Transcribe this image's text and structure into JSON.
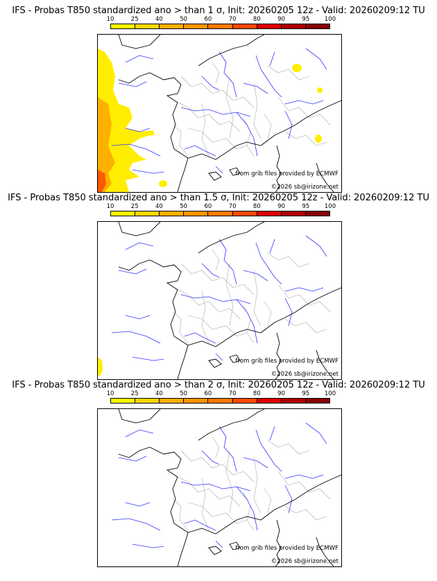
{
  "panels": [
    {
      "title": "IFS - Probas T850  standardized ano > than 1 σ, Init: 20260205 12z - Valid: 20260209:12 TU",
      "threshold_sigma": 1,
      "source_credit": "from grib files provided by ECMWF",
      "copyright": "©2026 sb@irizone.net"
    },
    {
      "title": "IFS - Probas T850  standardized ano > than 1.5 σ, Init: 20260205 12z - Valid: 20260209:12 TU",
      "threshold_sigma": 1.5,
      "source_credit": "from grib files provided by ECMWF",
      "copyright": "©2026 sb@irizone.net"
    },
    {
      "title": "IFS - Probas T850  standardized ano > than 2 σ, Init: 20260205 12z - Valid: 20260209:12 TU",
      "threshold_sigma": 2,
      "source_credit": "from grib files provided by ECMWF",
      "copyright": "©2026 sb@irizone.net"
    }
  ],
  "legend": {
    "labels": [
      "10",
      "25",
      "40",
      "50",
      "60",
      "70",
      "80",
      "90",
      "95",
      "100"
    ],
    "colors": [
      "#ffff00",
      "#ffd700",
      "#ffb000",
      "#ff9500",
      "#ff7a00",
      "#ff4a00",
      "#e00000",
      "#b00000",
      "#8a0000",
      "#5a0000"
    ]
  },
  "map_colors": {
    "coast": "#000000",
    "borders": "#aaaaaa",
    "rivers": "#3333ff",
    "prob_low": "#ffee00",
    "prob_mid": "#ffb000",
    "prob_high": "#ff5a00"
  }
}
